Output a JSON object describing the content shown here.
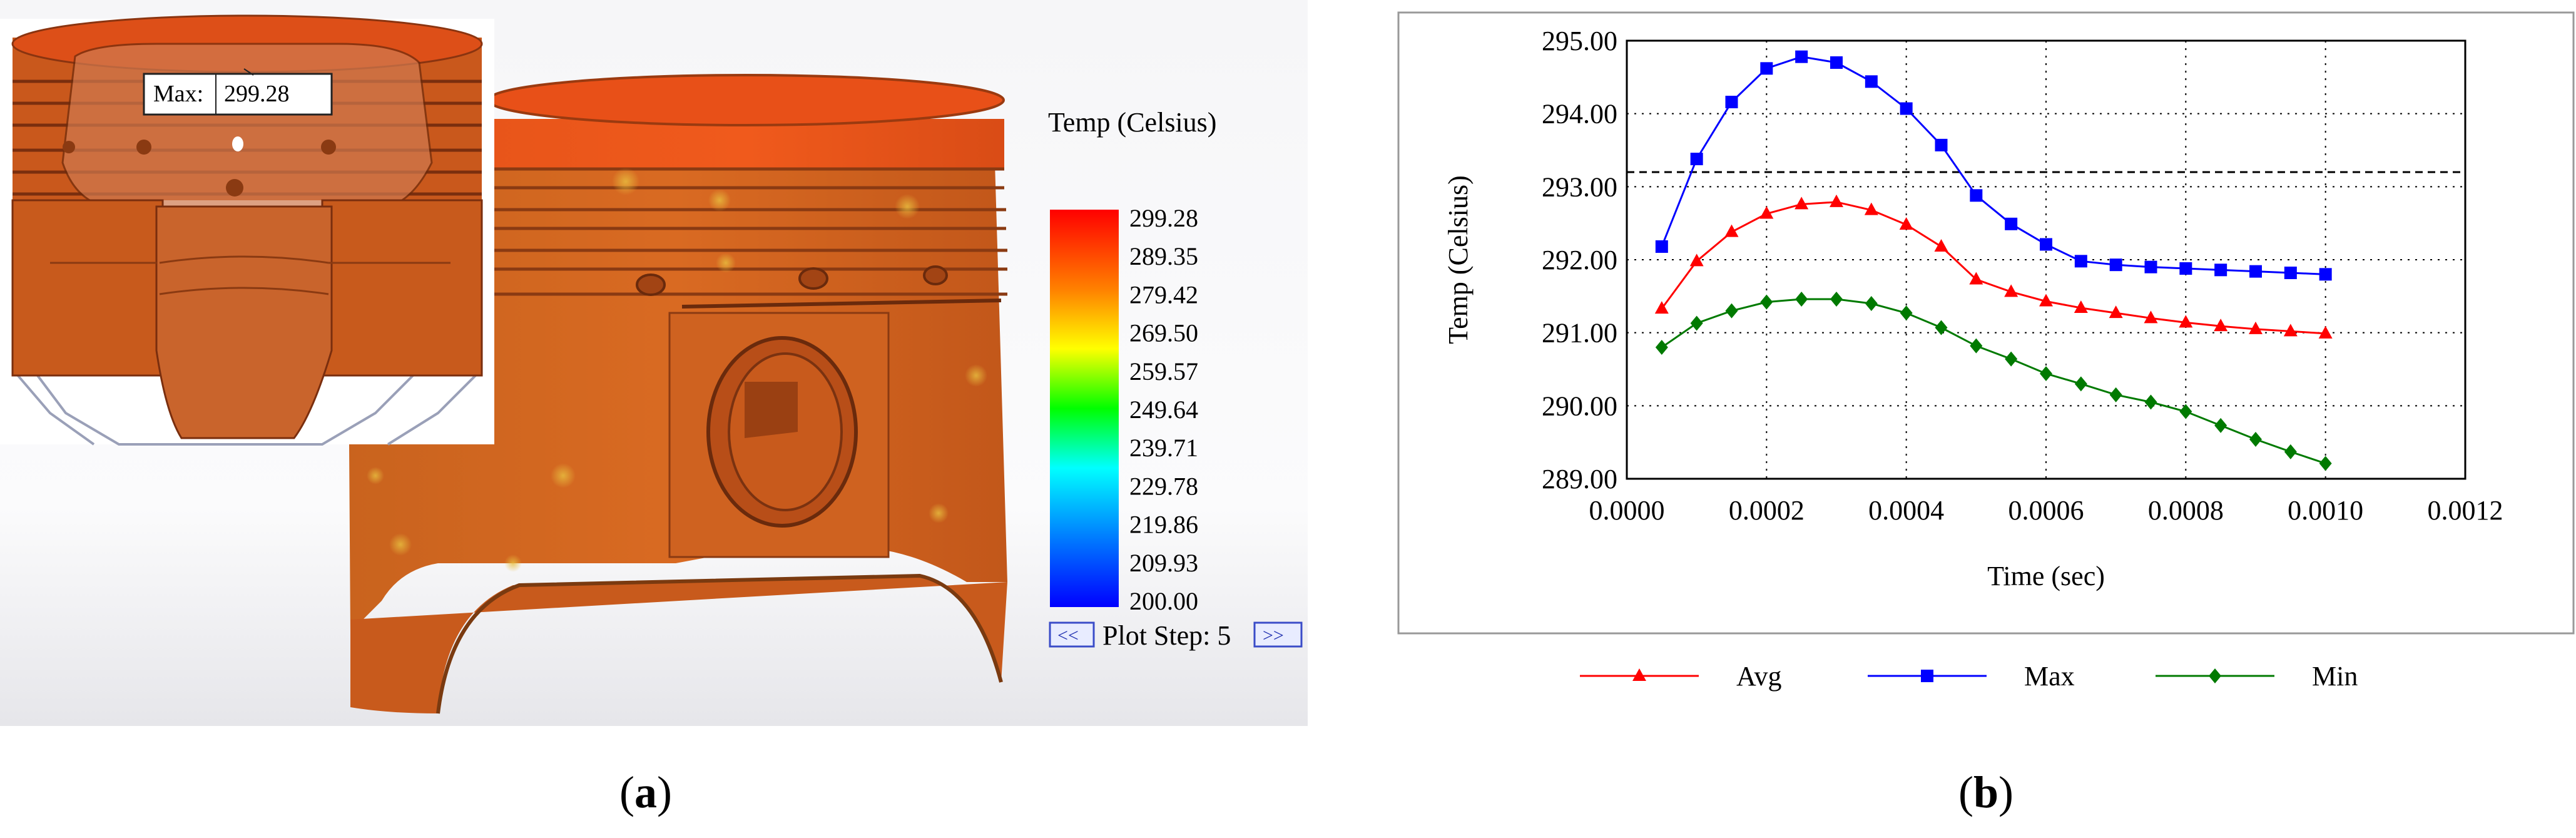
{
  "panel_a": {
    "max_probe_label": "Max:",
    "max_probe_value": "299.28",
    "legend_title": "Temp (Celsius)",
    "legend_ticks": [
      "299.28",
      "289.35",
      "279.42",
      "269.50",
      "259.57",
      "249.64",
      "239.71",
      "229.78",
      "219.86",
      "209.93",
      "200.00"
    ],
    "plot_step_label": "Plot Step: 5",
    "prev_button_label": "<<",
    "next_button_label": ">>",
    "caption": "a"
  },
  "panel_b": {
    "caption": "b"
  },
  "chart_data": {
    "type": "line",
    "xlabel": "Time (sec)",
    "ylabel": "Temp (Celsius)",
    "xlim": [
      0,
      0.0012
    ],
    "ylim": [
      289,
      295
    ],
    "xticks": [
      "0.0000",
      "0.0002",
      "0.0004",
      "0.0006",
      "0.0008",
      "0.0010",
      "0.0012"
    ],
    "yticks": [
      "289.00",
      "290.00",
      "291.00",
      "292.00",
      "293.00",
      "294.00",
      "295.00"
    ],
    "grid": true,
    "reference_line_y": 293.2,
    "legend_position": "bottom",
    "x": [
      5e-05,
      0.0001,
      0.00015,
      0.0002,
      0.00025,
      0.0003,
      0.00035,
      0.0004,
      0.00045,
      0.0005,
      0.00055,
      0.0006,
      0.00065,
      0.0007,
      0.00075,
      0.0008,
      0.00085,
      0.0009,
      0.00095,
      0.001
    ],
    "series": [
      {
        "name": "Avg",
        "color": "#ff0000",
        "marker": "triangle",
        "values": [
          291.33,
          291.98,
          292.38,
          292.63,
          292.76,
          292.79,
          292.68,
          292.48,
          292.18,
          291.73,
          291.56,
          291.43,
          291.34,
          291.27,
          291.2,
          291.14,
          291.09,
          291.05,
          291.02,
          290.99
        ]
      },
      {
        "name": "Max",
        "color": "#0000ff",
        "marker": "square",
        "values": [
          292.18,
          293.38,
          294.16,
          294.62,
          294.78,
          294.7,
          294.44,
          294.07,
          293.57,
          292.88,
          292.49,
          292.21,
          291.98,
          291.93,
          291.9,
          291.88,
          291.86,
          291.84,
          291.82,
          291.8
        ]
      },
      {
        "name": "Min",
        "color": "#007a00",
        "marker": "diamond",
        "values": [
          290.8,
          291.13,
          291.3,
          291.42,
          291.46,
          291.46,
          291.4,
          291.27,
          291.07,
          290.82,
          290.64,
          290.44,
          290.3,
          290.15,
          290.05,
          289.92,
          289.73,
          289.54,
          289.37,
          289.21
        ]
      }
    ]
  }
}
